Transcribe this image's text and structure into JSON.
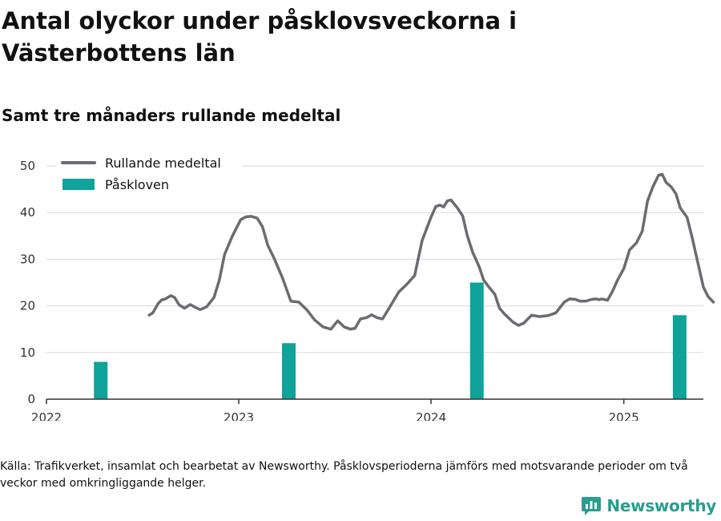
{
  "header": {
    "title": "Antal olyckor under påsklovsveckorna i Västerbottens län",
    "subtitle": "Samt tre månaders rullande medeltal"
  },
  "footer": {
    "source": "Källa: Trafikverket, insamlat och bearbetat av Newsworthy. Påsklovsperioderna jämförs med motsvarande perioder om två veckor med omkringliggande helger.",
    "brand": "Newsworthy"
  },
  "colors": {
    "line": "#6b6b72",
    "bar": "#0fa39a",
    "grid": "#d9d9d9",
    "axis": "#333333",
    "brand": "#2a9d8f"
  },
  "chart_data": {
    "type": "bar",
    "ylim": [
      0,
      50
    ],
    "yticks": [
      0,
      10,
      20,
      30,
      40,
      50
    ],
    "xlim": [
      "2022-01-01",
      "2025-06-01"
    ],
    "xticks": [
      {
        "date": "2022-01-01",
        "label": "2022"
      },
      {
        "date": "2023-01-01",
        "label": "2023"
      },
      {
        "date": "2024-01-01",
        "label": "2024"
      },
      {
        "date": "2025-01-01",
        "label": "2025"
      }
    ],
    "grid": true,
    "legend_position": "top-left",
    "series": [
      {
        "name": "Rullande medeltal",
        "kind": "line",
        "points": [
          [
            "2022-07-15",
            18
          ],
          [
            "2022-07-22",
            18.5
          ],
          [
            "2022-08-01",
            20.5
          ],
          [
            "2022-08-08",
            21.3
          ],
          [
            "2022-08-15",
            21.5
          ],
          [
            "2022-08-25",
            22.2
          ],
          [
            "2022-09-01",
            21.8
          ],
          [
            "2022-09-10",
            20.2
          ],
          [
            "2022-09-20",
            19.5
          ],
          [
            "2022-10-01",
            20.3
          ],
          [
            "2022-10-10",
            19.7
          ],
          [
            "2022-10-20",
            19.2
          ],
          [
            "2022-11-01",
            19.8
          ],
          [
            "2022-11-15",
            21.8
          ],
          [
            "2022-11-25",
            25.5
          ],
          [
            "2022-12-05",
            31
          ],
          [
            "2022-12-20",
            35
          ],
          [
            "2023-01-05",
            38.5
          ],
          [
            "2023-01-15",
            39.1
          ],
          [
            "2023-01-25",
            39.2
          ],
          [
            "2023-02-05",
            38.8
          ],
          [
            "2023-02-15",
            37
          ],
          [
            "2023-02-25",
            33
          ],
          [
            "2023-03-10",
            30
          ],
          [
            "2023-03-25",
            26
          ],
          [
            "2023-04-10",
            21
          ],
          [
            "2023-04-25",
            20.8
          ],
          [
            "2023-05-10",
            19.2
          ],
          [
            "2023-05-25",
            17
          ],
          [
            "2023-06-10",
            15.5
          ],
          [
            "2023-06-25",
            15
          ],
          [
            "2023-07-08",
            16.8
          ],
          [
            "2023-07-20",
            15.5
          ],
          [
            "2023-08-01",
            15
          ],
          [
            "2023-08-10",
            15.2
          ],
          [
            "2023-08-20",
            17.2
          ],
          [
            "2023-09-01",
            17.5
          ],
          [
            "2023-09-10",
            18.1
          ],
          [
            "2023-09-20",
            17.5
          ],
          [
            "2023-10-01",
            17.2
          ],
          [
            "2023-10-15",
            19.8
          ],
          [
            "2023-11-01",
            23
          ],
          [
            "2023-11-15",
            24.5
          ],
          [
            "2023-12-01",
            26.5
          ],
          [
            "2023-12-15",
            34
          ],
          [
            "2024-01-01",
            39
          ],
          [
            "2024-01-10",
            41.3
          ],
          [
            "2024-01-18",
            41.6
          ],
          [
            "2024-01-25",
            41.2
          ],
          [
            "2024-02-01",
            42.5
          ],
          [
            "2024-02-08",
            42.7
          ],
          [
            "2024-02-20",
            41
          ],
          [
            "2024-03-01",
            39.3
          ],
          [
            "2024-03-10",
            35
          ],
          [
            "2024-03-20",
            31.5
          ],
          [
            "2024-04-01",
            28.5
          ],
          [
            "2024-04-10",
            25.5
          ],
          [
            "2024-04-20",
            24
          ],
          [
            "2024-05-01",
            22.5
          ],
          [
            "2024-05-10",
            19.5
          ],
          [
            "2024-05-20",
            18.2
          ],
          [
            "2024-06-05",
            16.5
          ],
          [
            "2024-06-15",
            15.8
          ],
          [
            "2024-06-25",
            16.3
          ],
          [
            "2024-07-10",
            18
          ],
          [
            "2024-07-25",
            17.7
          ],
          [
            "2024-08-10",
            17.9
          ],
          [
            "2024-08-25",
            18.5
          ],
          [
            "2024-09-10",
            20.8
          ],
          [
            "2024-09-20",
            21.5
          ],
          [
            "2024-10-01",
            21.4
          ],
          [
            "2024-10-10",
            21
          ],
          [
            "2024-10-20",
            21
          ],
          [
            "2024-11-01",
            21.4
          ],
          [
            "2024-11-10",
            21.5
          ],
          [
            "2024-11-15",
            21.3
          ],
          [
            "2024-11-20",
            21.5
          ],
          [
            "2024-12-01",
            21.2
          ],
          [
            "2024-12-10",
            23
          ],
          [
            "2024-12-20",
            25.5
          ],
          [
            "2025-01-01",
            28
          ],
          [
            "2025-01-12",
            32
          ],
          [
            "2025-01-25",
            33.5
          ],
          [
            "2025-02-05",
            36
          ],
          [
            "2025-02-15",
            42.5
          ],
          [
            "2025-02-25",
            45.5
          ],
          [
            "2025-03-08",
            48
          ],
          [
            "2025-03-15",
            48.2
          ],
          [
            "2025-03-22",
            46.5
          ],
          [
            "2025-04-01",
            45.5
          ],
          [
            "2025-04-10",
            44
          ],
          [
            "2025-04-18",
            41
          ],
          [
            "2025-05-01",
            39
          ],
          [
            "2025-05-10",
            35
          ],
          [
            "2025-05-20",
            30
          ],
          [
            "2025-06-01",
            24
          ],
          [
            "2025-06-10",
            22
          ],
          [
            "2025-06-20",
            20.8
          ]
        ]
      },
      {
        "name": "Påskloven",
        "kind": "bar",
        "points": [
          [
            "2022-04-14",
            8
          ],
          [
            "2023-04-06",
            12
          ],
          [
            "2024-03-28",
            25
          ],
          [
            "2025-04-17",
            18
          ]
        ]
      }
    ]
  }
}
